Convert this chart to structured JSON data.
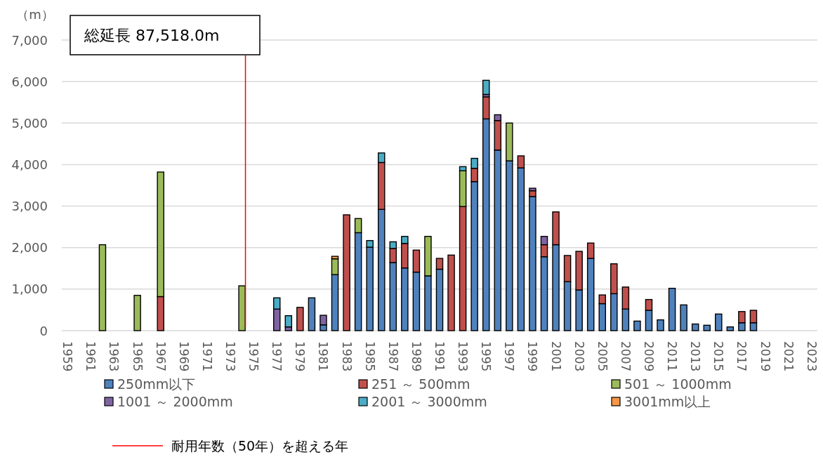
{
  "chart_data": {
    "type": "bar",
    "stacked": true,
    "ylabel": "（m）",
    "annotations": [
      "総延長 87,518.0m"
    ],
    "x": [
      1962,
      1965,
      1967,
      1974,
      1977,
      1978,
      1979,
      1980,
      1981,
      1982,
      1983,
      1984,
      1985,
      1986,
      1987,
      1988,
      1989,
      1990,
      1991,
      1992,
      1993,
      1994,
      1995,
      1996,
      1997,
      1998,
      1999,
      2000,
      2001,
      2002,
      2003,
      2004,
      2005,
      2006,
      2007,
      2008,
      2009,
      2010,
      2011,
      2012,
      2013,
      2014,
      2015,
      2016,
      2017,
      2018
    ],
    "xlim": [
      1958.5,
      2023.5
    ],
    "xticks": [
      1959,
      1961,
      1963,
      1965,
      1967,
      1969,
      1971,
      1973,
      1975,
      1977,
      1979,
      1981,
      1983,
      1985,
      1987,
      1989,
      1991,
      1993,
      1995,
      1997,
      1999,
      2001,
      2003,
      2005,
      2007,
      2009,
      2011,
      2013,
      2015,
      2017,
      2019,
      2021,
      2023
    ],
    "series": [
      {
        "name": "250mm以下",
        "color": "#4f81bd",
        "values": [
          null,
          null,
          null,
          null,
          null,
          null,
          null,
          790,
          140,
          1350,
          null,
          2360,
          2010,
          2920,
          1640,
          1510,
          1410,
          1320,
          1480,
          null,
          null,
          3590,
          5100,
          4350,
          4090,
          3920,
          3230,
          1780,
          2070,
          1180,
          980,
          1740,
          650,
          890,
          520,
          230,
          490,
          260,
          1020,
          620,
          160,
          130,
          400,
          90,
          190,
          190
        ]
      },
      {
        "name": "251 ～ 500mm",
        "color": "#c0504d",
        "values": [
          null,
          null,
          820,
          null,
          null,
          null,
          560,
          null,
          null,
          null,
          2790,
          null,
          null,
          1130,
          340,
          590,
          530,
          null,
          260,
          1820,
          2990,
          320,
          530,
          710,
          null,
          290,
          140,
          290,
          790,
          630,
          930,
          370,
          210,
          720,
          530,
          null,
          260,
          null,
          null,
          null,
          null,
          null,
          null,
          null,
          270,
          300
        ]
      },
      {
        "name": "501 ～ 1000mm",
        "color": "#9bbb59",
        "values": [
          2070,
          850,
          3000,
          1080,
          null,
          null,
          null,
          null,
          null,
          380,
          null,
          340,
          null,
          null,
          null,
          null,
          null,
          950,
          null,
          null,
          860,
          null,
          null,
          null,
          910,
          null,
          null,
          null,
          null,
          null,
          null,
          null,
          null,
          null,
          null,
          null,
          null,
          null,
          null,
          null,
          null,
          null,
          null,
          null,
          null,
          null
        ]
      },
      {
        "name": "1001 ～ 2000mm",
        "color": "#8064a2",
        "values": [
          null,
          null,
          null,
          null,
          520,
          90,
          null,
          null,
          230,
          null,
          null,
          null,
          null,
          null,
          null,
          null,
          null,
          null,
          null,
          null,
          null,
          null,
          60,
          140,
          null,
          null,
          60,
          200,
          null,
          null,
          null,
          null,
          null,
          null,
          null,
          null,
          null,
          null,
          null,
          null,
          null,
          null,
          null,
          null,
          null,
          null
        ]
      },
      {
        "name": "2001 ～ 3000mm",
        "color": "#4bacc6",
        "values": [
          null,
          null,
          null,
          null,
          270,
          270,
          null,
          null,
          null,
          null,
          null,
          null,
          160,
          230,
          160,
          170,
          null,
          null,
          null,
          null,
          100,
          240,
          340,
          null,
          null,
          null,
          null,
          null,
          null,
          null,
          null,
          null,
          null,
          null,
          null,
          null,
          null,
          null,
          null,
          null,
          null,
          null,
          null,
          null,
          null,
          null
        ]
      },
      {
        "name": "3001mm以上",
        "color": "#f79646",
        "values": [
          null,
          null,
          null,
          null,
          null,
          null,
          null,
          null,
          null,
          60,
          null,
          null,
          null,
          null,
          null,
          null,
          null,
          null,
          null,
          null,
          null,
          null,
          null,
          null,
          null,
          null,
          null,
          null,
          null,
          null,
          null,
          null,
          null,
          null,
          null,
          null,
          null,
          null,
          null,
          null,
          null,
          null,
          null,
          null,
          null,
          null
        ]
      }
    ],
    "ylim": [
      0,
      7000
    ],
    "yticks": [
      0,
      {
        "value": 1000,
        "label": "1,000"
      },
      {
        "value": 2000,
        "label": "2,000"
      },
      {
        "value": 3000,
        "label": "3,000"
      },
      {
        "value": 4000,
        "label": "4,000"
      },
      {
        "value": 5000,
        "label": "5,000"
      },
      {
        "value": 6000,
        "label": "6,000"
      },
      {
        "value": 7000,
        "label": "7,000"
      }
    ],
    "ref_lines": [
      {
        "axis": "x",
        "value": 1974.3,
        "label": "耐用年数（50年）を超える年",
        "color": "#ff0000"
      }
    ],
    "grid": "y",
    "legend": "bottom"
  }
}
